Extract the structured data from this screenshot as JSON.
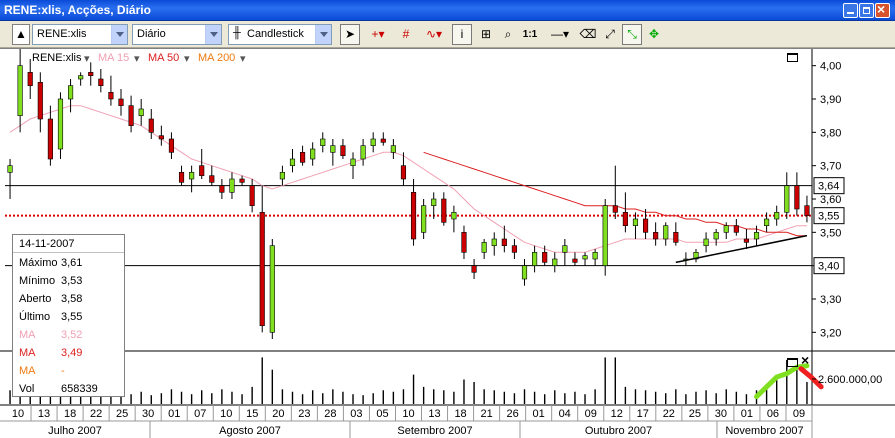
{
  "window": {
    "title": "RENE:xlis, Acções, Diário"
  },
  "toolbar": {
    "symbol": "RENE:xlis",
    "period": "Diário",
    "chart_type": "Candlestick",
    "ratio_label": "1:1",
    "icons": [
      "arrow-icon",
      "crosshair-icon",
      "grid-icon",
      "indicator-icon",
      "info-icon",
      "annotate-icon",
      "zoom-icon",
      "ratio-icon",
      "line-icon",
      "eraser-icon",
      "fullscreen-icon",
      "color-icon"
    ]
  },
  "legend": {
    "symbol": "RENE:xlis",
    "ma15": "MA 15",
    "ma50": "MA 50",
    "ma200": "MA 200"
  },
  "colors": {
    "ma15": "#f0a0b4",
    "ma50": "#dc2020",
    "ma200": "#f07a10",
    "volume_up": "#80e020",
    "volume_down": "#f02020"
  },
  "infobox": {
    "date": "14-11-2007",
    "rows": [
      {
        "k": "Máximo",
        "v": "3,61"
      },
      {
        "k": "Mínimo",
        "v": "3,53"
      },
      {
        "k": "Aberto",
        "v": "3,58"
      },
      {
        "k": "Último",
        "v": "3,55"
      },
      {
        "k": "MA",
        "v": "3,52"
      },
      {
        "k": "MA",
        "v": "3,49"
      },
      {
        "k": "MA",
        "v": "-"
      },
      {
        "k": "Vol",
        "v": "658339"
      }
    ]
  },
  "price_axis": {
    "ticks": [
      "4,00",
      "3,90",
      "3,80",
      "3,70",
      "3,60",
      "3,50",
      "3,40",
      "3,30",
      "3,20"
    ],
    "markers": [
      "3,64",
      "3,55",
      "3,40"
    ]
  },
  "volume_axis": {
    "label": "2.600.000,00"
  },
  "date_axis": {
    "days": [
      "10",
      "13",
      "18",
      "22",
      "25",
      "30",
      "01",
      "07",
      "10",
      "15",
      "20",
      "23",
      "28",
      "03",
      "05",
      "10",
      "13",
      "18",
      "21",
      "26",
      "01",
      "04",
      "09",
      "12",
      "17",
      "22",
      "25",
      "30",
      "01",
      "06",
      "09"
    ],
    "months": [
      "Julho 2007",
      "Agosto 2007",
      "Setembro 2007",
      "Outubro 2007",
      "Novembro 2007"
    ]
  },
  "chart_data": {
    "type": "candlestick",
    "ylim": [
      3.15,
      4.05
    ],
    "horizontal_lines": [
      3.64,
      3.55,
      3.4
    ],
    "candles": [
      {
        "o": 3.68,
        "h": 3.72,
        "l": 3.6,
        "c": 3.7
      },
      {
        "o": 3.85,
        "h": 4.05,
        "l": 3.8,
        "c": 4.0
      },
      {
        "o": 3.98,
        "h": 4.02,
        "l": 3.9,
        "c": 3.94
      },
      {
        "o": 3.95,
        "h": 3.98,
        "l": 3.8,
        "c": 3.84
      },
      {
        "o": 3.84,
        "h": 3.88,
        "l": 3.7,
        "c": 3.72
      },
      {
        "o": 3.75,
        "h": 3.92,
        "l": 3.72,
        "c": 3.9
      },
      {
        "o": 3.9,
        "h": 3.96,
        "l": 3.86,
        "c": 3.94
      },
      {
        "o": 3.96,
        "h": 3.98,
        "l": 3.94,
        "c": 3.97
      },
      {
        "o": 3.98,
        "h": 4.01,
        "l": 3.94,
        "c": 3.97
      },
      {
        "o": 3.96,
        "h": 3.99,
        "l": 3.92,
        "c": 3.94
      },
      {
        "o": 3.92,
        "h": 3.97,
        "l": 3.88,
        "c": 3.9
      },
      {
        "o": 3.9,
        "h": 3.93,
        "l": 3.85,
        "c": 3.88
      },
      {
        "o": 3.88,
        "h": 3.91,
        "l": 3.8,
        "c": 3.82
      },
      {
        "o": 3.85,
        "h": 3.9,
        "l": 3.82,
        "c": 3.87
      },
      {
        "o": 3.84,
        "h": 3.87,
        "l": 3.78,
        "c": 3.8
      },
      {
        "o": 3.79,
        "h": 3.82,
        "l": 3.76,
        "c": 3.78
      },
      {
        "o": 3.78,
        "h": 3.8,
        "l": 3.72,
        "c": 3.74
      },
      {
        "o": 3.68,
        "h": 3.7,
        "l": 3.64,
        "c": 3.65
      },
      {
        "o": 3.66,
        "h": 3.7,
        "l": 3.62,
        "c": 3.68
      },
      {
        "o": 3.7,
        "h": 3.75,
        "l": 3.66,
        "c": 3.67
      },
      {
        "o": 3.67,
        "h": 3.7,
        "l": 3.64,
        "c": 3.65
      },
      {
        "o": 3.64,
        "h": 3.66,
        "l": 3.6,
        "c": 3.62
      },
      {
        "o": 3.62,
        "h": 3.68,
        "l": 3.6,
        "c": 3.66
      },
      {
        "o": 3.66,
        "h": 3.67,
        "l": 3.64,
        "c": 3.65
      },
      {
        "o": 3.64,
        "h": 3.66,
        "l": 3.56,
        "c": 3.58
      },
      {
        "o": 3.56,
        "h": 3.64,
        "l": 3.2,
        "c": 3.22
      },
      {
        "o": 3.2,
        "h": 3.48,
        "l": 3.18,
        "c": 3.46
      },
      {
        "o": 3.66,
        "h": 3.7,
        "l": 3.64,
        "c": 3.68
      },
      {
        "o": 3.7,
        "h": 3.75,
        "l": 3.68,
        "c": 3.72
      },
      {
        "o": 3.74,
        "h": 3.76,
        "l": 3.7,
        "c": 3.71
      },
      {
        "o": 3.72,
        "h": 3.77,
        "l": 3.7,
        "c": 3.75
      },
      {
        "o": 3.76,
        "h": 3.8,
        "l": 3.74,
        "c": 3.78
      },
      {
        "o": 3.74,
        "h": 3.78,
        "l": 3.7,
        "c": 3.76
      },
      {
        "o": 3.76,
        "h": 3.78,
        "l": 3.72,
        "c": 3.73
      },
      {
        "o": 3.7,
        "h": 3.74,
        "l": 3.66,
        "c": 3.72
      },
      {
        "o": 3.72,
        "h": 3.78,
        "l": 3.7,
        "c": 3.76
      },
      {
        "o": 3.76,
        "h": 3.8,
        "l": 3.74,
        "c": 3.78
      },
      {
        "o": 3.78,
        "h": 3.8,
        "l": 3.76,
        "c": 3.77
      },
      {
        "o": 3.74,
        "h": 3.78,
        "l": 3.72,
        "c": 3.76
      },
      {
        "o": 3.7,
        "h": 3.74,
        "l": 3.64,
        "c": 3.66
      },
      {
        "o": 3.62,
        "h": 3.66,
        "l": 3.46,
        "c": 3.48
      },
      {
        "o": 3.5,
        "h": 3.6,
        "l": 3.48,
        "c": 3.58
      },
      {
        "o": 3.58,
        "h": 3.62,
        "l": 3.54,
        "c": 3.6
      },
      {
        "o": 3.6,
        "h": 3.62,
        "l": 3.52,
        "c": 3.53
      },
      {
        "o": 3.54,
        "h": 3.58,
        "l": 3.5,
        "c": 3.56
      },
      {
        "o": 3.5,
        "h": 3.52,
        "l": 3.42,
        "c": 3.44
      },
      {
        "o": 3.4,
        "h": 3.42,
        "l": 3.36,
        "c": 3.38
      },
      {
        "o": 3.44,
        "h": 3.48,
        "l": 3.42,
        "c": 3.47
      },
      {
        "o": 3.46,
        "h": 3.5,
        "l": 3.43,
        "c": 3.48
      },
      {
        "o": 3.48,
        "h": 3.52,
        "l": 3.44,
        "c": 3.46
      },
      {
        "o": 3.46,
        "h": 3.48,
        "l": 3.42,
        "c": 3.44
      },
      {
        "o": 3.36,
        "h": 3.42,
        "l": 3.34,
        "c": 3.4
      },
      {
        "o": 3.4,
        "h": 3.46,
        "l": 3.38,
        "c": 3.44
      },
      {
        "o": 3.44,
        "h": 3.46,
        "l": 3.4,
        "c": 3.41
      },
      {
        "o": 3.4,
        "h": 3.44,
        "l": 3.38,
        "c": 3.42
      },
      {
        "o": 3.44,
        "h": 3.48,
        "l": 3.4,
        "c": 3.46
      },
      {
        "o": 3.42,
        "h": 3.44,
        "l": 3.4,
        "c": 3.41
      },
      {
        "o": 3.42,
        "h": 3.44,
        "l": 3.4,
        "c": 3.43
      },
      {
        "o": 3.42,
        "h": 3.45,
        "l": 3.4,
        "c": 3.44
      },
      {
        "o": 3.4,
        "h": 3.6,
        "l": 3.37,
        "c": 3.58
      },
      {
        "o": 3.58,
        "h": 3.7,
        "l": 3.54,
        "c": 3.56
      },
      {
        "o": 3.56,
        "h": 3.62,
        "l": 3.5,
        "c": 3.52
      },
      {
        "o": 3.52,
        "h": 3.56,
        "l": 3.48,
        "c": 3.54
      },
      {
        "o": 3.54,
        "h": 3.57,
        "l": 3.48,
        "c": 3.5
      },
      {
        "o": 3.5,
        "h": 3.53,
        "l": 3.46,
        "c": 3.48
      },
      {
        "o": 3.48,
        "h": 3.53,
        "l": 3.46,
        "c": 3.52
      },
      {
        "o": 3.5,
        "h": 3.53,
        "l": 3.46,
        "c": 3.47
      },
      {
        "o": 3.42,
        "h": 3.44,
        "l": 3.4,
        "c": 3.42
      },
      {
        "o": 3.42,
        "h": 3.45,
        "l": 3.41,
        "c": 3.44
      },
      {
        "o": 3.46,
        "h": 3.5,
        "l": 3.44,
        "c": 3.48
      },
      {
        "o": 3.48,
        "h": 3.51,
        "l": 3.46,
        "c": 3.5
      },
      {
        "o": 3.5,
        "h": 3.53,
        "l": 3.48,
        "c": 3.52
      },
      {
        "o": 3.52,
        "h": 3.54,
        "l": 3.49,
        "c": 3.5
      },
      {
        "o": 3.48,
        "h": 3.51,
        "l": 3.45,
        "c": 3.47
      },
      {
        "o": 3.48,
        "h": 3.52,
        "l": 3.46,
        "c": 3.5
      },
      {
        "o": 3.52,
        "h": 3.56,
        "l": 3.5,
        "c": 3.54
      },
      {
        "o": 3.54,
        "h": 3.58,
        "l": 3.52,
        "c": 3.56
      },
      {
        "o": 3.56,
        "h": 3.68,
        "l": 3.54,
        "c": 3.64
      },
      {
        "o": 3.64,
        "h": 3.68,
        "l": 3.55,
        "c": 3.57
      },
      {
        "o": 3.58,
        "h": 3.61,
        "l": 3.53,
        "c": 3.55
      }
    ],
    "volume": [
      0.28,
      0.22,
      0.18,
      0.3,
      0.25,
      0.2,
      0.35,
      0.3,
      0.45,
      0.28,
      0.22,
      0.3,
      0.2,
      0.25,
      0.18,
      0.22,
      0.3,
      0.25,
      0.2,
      0.28,
      0.22,
      0.3,
      0.25,
      0.2,
      0.35,
      0.95,
      0.7,
      0.3,
      0.25,
      0.2,
      0.28,
      0.22,
      0.3,
      0.25,
      0.2,
      0.18,
      0.22,
      0.28,
      0.25,
      0.3,
      0.6,
      0.35,
      0.3,
      0.28,
      0.25,
      0.5,
      0.45,
      0.3,
      0.28,
      0.25,
      0.22,
      0.3,
      0.25,
      0.2,
      0.28,
      0.22,
      0.25,
      0.2,
      0.3,
      0.95,
      0.95,
      0.35,
      0.3,
      0.28,
      0.25,
      0.22,
      0.3,
      0.2,
      0.25,
      0.28,
      0.22,
      0.3,
      0.25,
      0.2,
      0.28,
      0.35,
      0.55,
      0.9,
      0.7,
      0.45
    ],
    "ma15": [
      3.8,
      3.82,
      3.84,
      3.85,
      3.86,
      3.87,
      3.88,
      3.88,
      3.87,
      3.86,
      3.85,
      3.84,
      3.83,
      3.82,
      3.8,
      3.78,
      3.76,
      3.74,
      3.72,
      3.71,
      3.7,
      3.69,
      3.68,
      3.67,
      3.66,
      3.64,
      3.63,
      3.64,
      3.65,
      3.66,
      3.67,
      3.68,
      3.69,
      3.7,
      3.71,
      3.72,
      3.73,
      3.74,
      3.74,
      3.73,
      3.71,
      3.69,
      3.67,
      3.65,
      3.63,
      3.6,
      3.57,
      3.55,
      3.53,
      3.51,
      3.49,
      3.47,
      3.46,
      3.45,
      3.44,
      3.44,
      3.44,
      3.44,
      3.45,
      3.46,
      3.47,
      3.48,
      3.48,
      3.48,
      3.48,
      3.48,
      3.48,
      3.47,
      3.47,
      3.47,
      3.47,
      3.47,
      3.48,
      3.48,
      3.48,
      3.49,
      3.5,
      3.51,
      3.52,
      3.52
    ],
    "ma50": [
      null,
      null,
      null,
      null,
      null,
      null,
      null,
      null,
      null,
      null,
      null,
      null,
      null,
      null,
      null,
      null,
      null,
      null,
      null,
      null,
      null,
      null,
      null,
      null,
      null,
      null,
      null,
      null,
      null,
      null,
      null,
      null,
      null,
      null,
      null,
      null,
      null,
      null,
      null,
      null,
      null,
      3.74,
      3.73,
      3.72,
      3.71,
      3.7,
      3.69,
      3.68,
      3.67,
      3.66,
      3.65,
      3.64,
      3.63,
      3.62,
      3.61,
      3.6,
      3.59,
      3.58,
      3.58,
      3.58,
      3.58,
      3.57,
      3.57,
      3.56,
      3.56,
      3.55,
      3.55,
      3.54,
      3.54,
      3.53,
      3.53,
      3.52,
      3.52,
      3.51,
      3.51,
      3.5,
      3.5,
      3.5,
      3.49,
      3.49
    ],
    "trendline": {
      "from": [
        66,
        3.41
      ],
      "to": [
        79,
        3.49
      ]
    }
  }
}
